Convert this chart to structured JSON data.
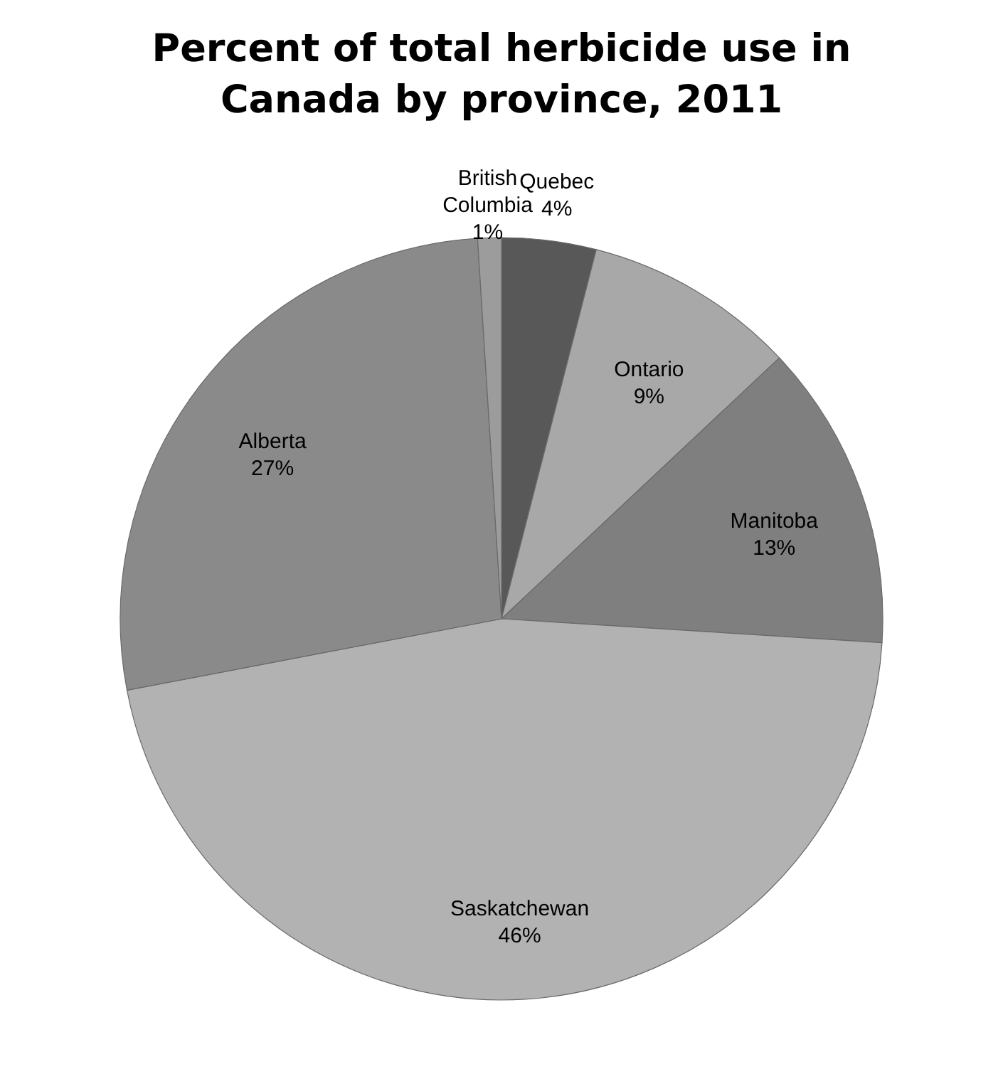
{
  "chart_data": {
    "type": "pie",
    "title": "Percent of total herbicide use in\nCanada by province, 2011",
    "categories": [
      "Quebec",
      "Ontario",
      "Manitoba",
      "Saskatchewan",
      "Alberta",
      "British Columbia"
    ],
    "values": [
      4,
      9,
      13,
      46,
      27,
      1
    ],
    "colors": [
      "#585858",
      "#a8a8a8",
      "#7f7f7f",
      "#b2b2b2",
      "#8a8a8a",
      "#9c9c9c"
    ],
    "value_labels": [
      "4%",
      "9%",
      "13%",
      "46%",
      "27%",
      "1%"
    ],
    "legend": false
  }
}
